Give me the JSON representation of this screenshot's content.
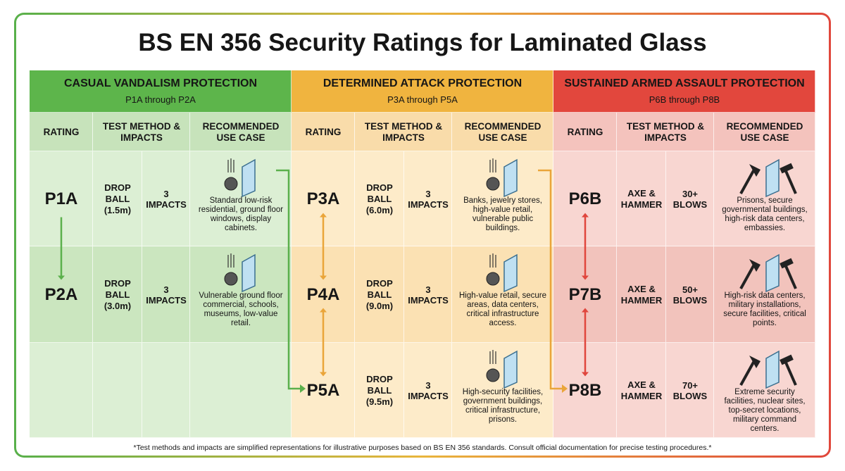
{
  "title": "BS EN 356 Security Ratings for Laminated Glass",
  "groups": [
    {
      "title": "CASUAL VANDALISM PROTECTION",
      "subtitle": "P1A through P2A",
      "columns": [
        "RATING",
        "TEST METHOD & IMPACTS",
        "RECOMMENDED USE CASE"
      ],
      "rows": [
        {
          "rating": "P1A",
          "method": "DROP BALL (1.5m)",
          "impacts": "3 IMPACTS",
          "use_case": "Standard low-risk residential, ground floor windows, display cabinets."
        },
        {
          "rating": "P2A",
          "method": "DROP BALL (3.0m)",
          "impacts": "3 IMPACTS",
          "use_case": "Vulnerable ground floor commercial, schools, museums, low-value retail."
        }
      ]
    },
    {
      "title": "DETERMINED ATTACK PROTECTION",
      "subtitle": "P3A through P5A",
      "columns": [
        "RATING",
        "TEST METHOD & IMPACTS",
        "RECOMMENDED USE CASE"
      ],
      "rows": [
        {
          "rating": "P3A",
          "method": "DROP BALL (6.0m)",
          "impacts": "3 IMPACTS",
          "use_case": "Banks, jewelry stores, high-value retail, vulnerable public buildings."
        },
        {
          "rating": "P4A",
          "method": "DROP BALL (9.0m)",
          "impacts": "3 IMPACTS",
          "use_case": "High-value retail, secure areas, data centers, critical infrastructure access."
        },
        {
          "rating": "P5A",
          "method": "DROP BALL (9.5m)",
          "impacts": "3 IMPACTS",
          "use_case": "High-security facilities, government buildings, critical infrastructure, prisons."
        }
      ]
    },
    {
      "title": "SUSTAINED ARMED ASSAULT PROTECTION",
      "subtitle": "P6B through P8B",
      "columns": [
        "RATING",
        "TEST METHOD & IMPACTS",
        "RECOMMENDED USE CASE"
      ],
      "rows": [
        {
          "rating": "P6B",
          "method": "AXE & HAMMER",
          "impacts": "30+ BLOWS",
          "use_case": "Prisons, secure governmental buildings, high-risk data centers, embassies."
        },
        {
          "rating": "P7B",
          "method": "AXE & HAMMER",
          "impacts": "50+ BLOWS",
          "use_case": "High-risk data centers, military installations, secure facilities, critical points."
        },
        {
          "rating": "P8B",
          "method": "AXE & HAMMER",
          "impacts": "70+ BLOWS",
          "use_case": "Extreme security facilities, nuclear sites, top-secret locations, military command centers."
        }
      ]
    }
  ],
  "footnote": "*Test methods and impacts are simplified representations for illustrative purposes based on BS EN 356 standards. Consult official documentation for precise testing procedures.*"
}
